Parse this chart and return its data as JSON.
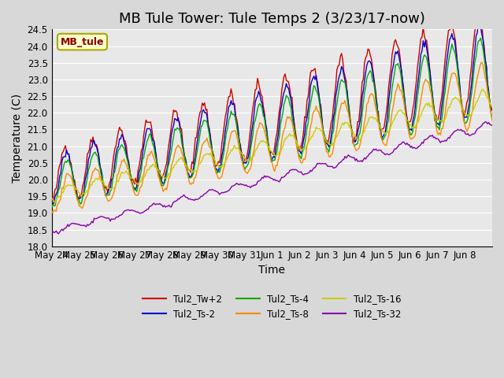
{
  "title": "MB Tule Tower: Tule Temps 2 (3/23/17-now)",
  "xlabel": "Time",
  "ylabel": "Temperature (C)",
  "ylim": [
    18.0,
    24.5
  ],
  "yticks": [
    18.0,
    18.5,
    19.0,
    19.5,
    20.0,
    20.5,
    21.0,
    21.5,
    22.0,
    22.5,
    23.0,
    23.5,
    24.0,
    24.5
  ],
  "xtick_labels": [
    "May 24",
    "May 25",
    "May 26",
    "May 27",
    "May 28",
    "May 29",
    "May 30",
    "May 31",
    "Jun 1",
    "Jun 2",
    "Jun 3",
    "Jun 4",
    "Jun 5",
    "Jun 6",
    "Jun 7",
    "Jun 8"
  ],
  "series_colors": [
    "#cc0000",
    "#0000cc",
    "#00aa00",
    "#ff8800",
    "#cccc00",
    "#8800aa"
  ],
  "series_labels": [
    "Tul2_Tw+2",
    "Tul2_Ts-2",
    "Tul2_Ts-4",
    "Tul2_Ts-8",
    "Tul2_Ts-16",
    "Tul2_Ts-32"
  ],
  "legend_label": "MB_tule",
  "title_fontsize": 13,
  "axis_fontsize": 10,
  "tick_fontsize": 8.5
}
